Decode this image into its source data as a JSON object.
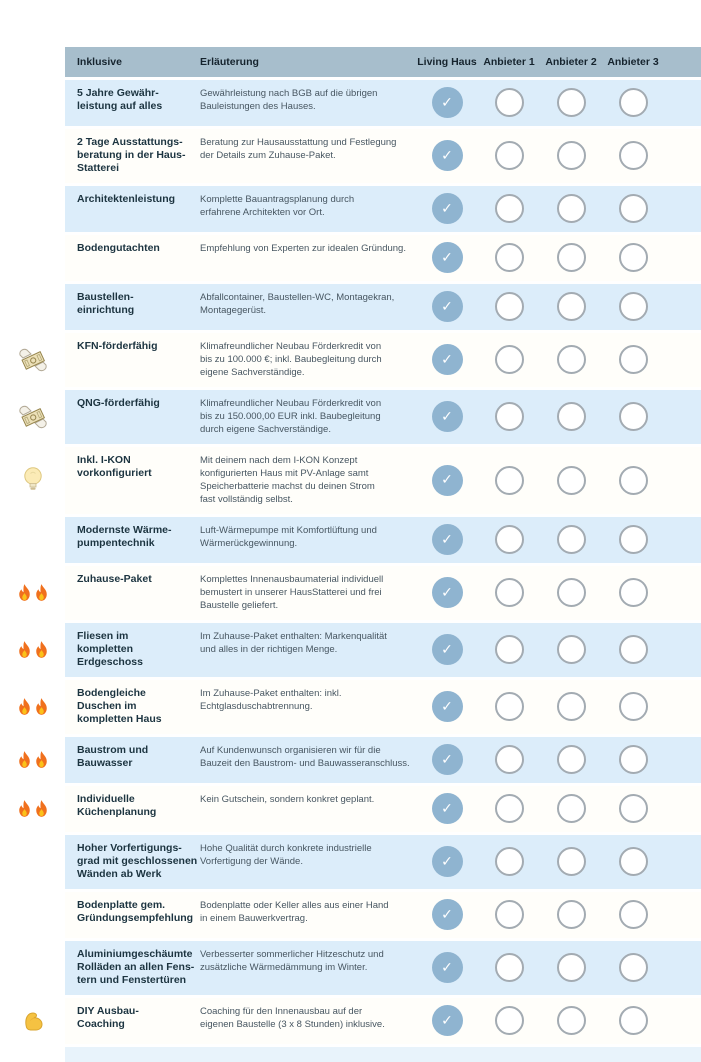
{
  "header": {
    "col_feature": "Inklusive",
    "col_description": "Erläuterung",
    "providers": [
      "Living Haus",
      "Anbieter 1",
      "Anbieter 2",
      "Anbieter 3"
    ]
  },
  "colors": {
    "header_bg": "#a7becc",
    "header_text": "#16242e",
    "row_alt_bg": "#dcedfa",
    "row_bg": "#fffefa",
    "title_color": "#1c3440",
    "desc_color": "#475661",
    "check_fill": "#8fb4d0",
    "check_mark": "#ffffff",
    "empty_border": "#a3abb2"
  },
  "rows": [
    {
      "icon": "",
      "title": "5 Jahre Gewähr-\nleistung auf alles",
      "description": "Gewährleistung nach BGB auf die übrigen\nBauleistungen des Hauses.",
      "checks": [
        true,
        false,
        false,
        false
      ]
    },
    {
      "icon": "",
      "title": "2 Tage Ausstattungs-\nberatung in der Haus-\nStatterei",
      "description": "Beratung zur Hausausstattung und Festlegung\nder Details zum Zuhause-Paket.",
      "checks": [
        true,
        false,
        false,
        false
      ]
    },
    {
      "icon": "",
      "title": "Architektenleistung",
      "description": "Komplette Bauantragsplanung durch\nerfahrene Architekten vor Ort.",
      "checks": [
        true,
        false,
        false,
        false
      ]
    },
    {
      "icon": "",
      "title": "Bodengutachten",
      "description": "Empfehlung von Experten zur idealen Gründung.",
      "checks": [
        true,
        false,
        false,
        false
      ]
    },
    {
      "icon": "",
      "title": "Baustellen-\neinrichtung",
      "description": "Abfallcontainer, Baustellen-WC, Montagekran,\nMontagegerüst.",
      "checks": [
        true,
        false,
        false,
        false
      ]
    },
    {
      "icon": "money-wings",
      "title": "KFN-förderfähig",
      "description": "Klimafreundlicher Neubau Förderkredit von\nbis zu 100.000 €; inkl. Baubegleitung durch\neigene Sachverständige.",
      "checks": [
        true,
        false,
        false,
        false
      ]
    },
    {
      "icon": "money-wings",
      "title": "QNG-förderfähig",
      "description": "Klimafreundlicher Neubau Förderkredit von\nbis zu 150.000,00 EUR inkl. Baubegleitung\ndurch eigene Sachverständige.",
      "checks": [
        true,
        false,
        false,
        false
      ]
    },
    {
      "icon": "light-bulb",
      "title": "Inkl. I-KON\nvorkonfiguriert",
      "description": "Mit deinem nach dem I-KON Konzept\nkonfigurierten Haus mit PV-Anlage samt\nSpeicherbatterie machst du deinen Strom\nfast vollständig selbst.",
      "checks": [
        true,
        false,
        false,
        false
      ]
    },
    {
      "icon": "",
      "title": "Modernste Wärme-\npumpentechnik",
      "description": "Luft-Wärmepumpe mit Komfortlüftung und\nWärmerückgewinnung.",
      "checks": [
        true,
        false,
        false,
        false
      ]
    },
    {
      "icon": "fire-double",
      "title": "Zuhause-Paket",
      "description": "Komplettes Innenausbaumaterial individuell\nbemustert in unserer HausStatterei und frei\nBaustelle geliefert.",
      "checks": [
        true,
        false,
        false,
        false
      ]
    },
    {
      "icon": "fire-double",
      "title": "Fliesen im\nkompletten\nErdgeschoss",
      "description": "Im Zuhause-Paket enthalten: Markenqualität\nund alles in der richtigen Menge.",
      "checks": [
        true,
        false,
        false,
        false
      ]
    },
    {
      "icon": "fire-double",
      "title": "Bodengleiche\nDuschen im\nkompletten Haus",
      "description": "Im Zuhause-Paket enthalten: inkl.\nEchtglasduschabtrennung.",
      "checks": [
        true,
        false,
        false,
        false
      ]
    },
    {
      "icon": "fire-double",
      "title": "Baustrom und\nBauwasser",
      "description": "Auf Kundenwunsch organisieren wir für die\nBauzeit den Baustrom- und Bauwasseranschluss.",
      "checks": [
        true,
        false,
        false,
        false
      ]
    },
    {
      "icon": "fire-double",
      "title": "Individuelle\nKüchenplanung",
      "description": "Kein Gutschein, sondern konkret geplant.",
      "checks": [
        true,
        false,
        false,
        false
      ]
    },
    {
      "icon": "",
      "title": "Hoher Vorfertigungs-\ngrad mit geschlossenen\nWänden ab Werk",
      "description": "Hohe Qualität durch konkrete industrielle\nVorfertigung der Wände.",
      "checks": [
        true,
        false,
        false,
        false
      ]
    },
    {
      "icon": "",
      "title": "Bodenplatte gem.\nGründungsempfehlung",
      "description": "Bodenplatte oder Keller alles aus einer Hand\nin einem Bauwerkvertrag.",
      "checks": [
        true,
        false,
        false,
        false
      ]
    },
    {
      "icon": "",
      "title": "Aluminiumgeschäumte\nRolläden an allen Fens-\ntern und Fenstertüren",
      "description": "Verbesserter sommerlicher Hitzeschutz und\nzusätzliche Wärmedämmung im Winter.",
      "checks": [
        true,
        false,
        false,
        false
      ]
    },
    {
      "icon": "flexed-biceps",
      "title": "DIY Ausbau-\nCoaching",
      "description": "Coaching für den Innenausbau auf der\neigenen Baustelle (3 x 8 Stunden) inklusive.",
      "checks": [
        true,
        false,
        false,
        false
      ]
    }
  ],
  "check_glyph": "✓"
}
